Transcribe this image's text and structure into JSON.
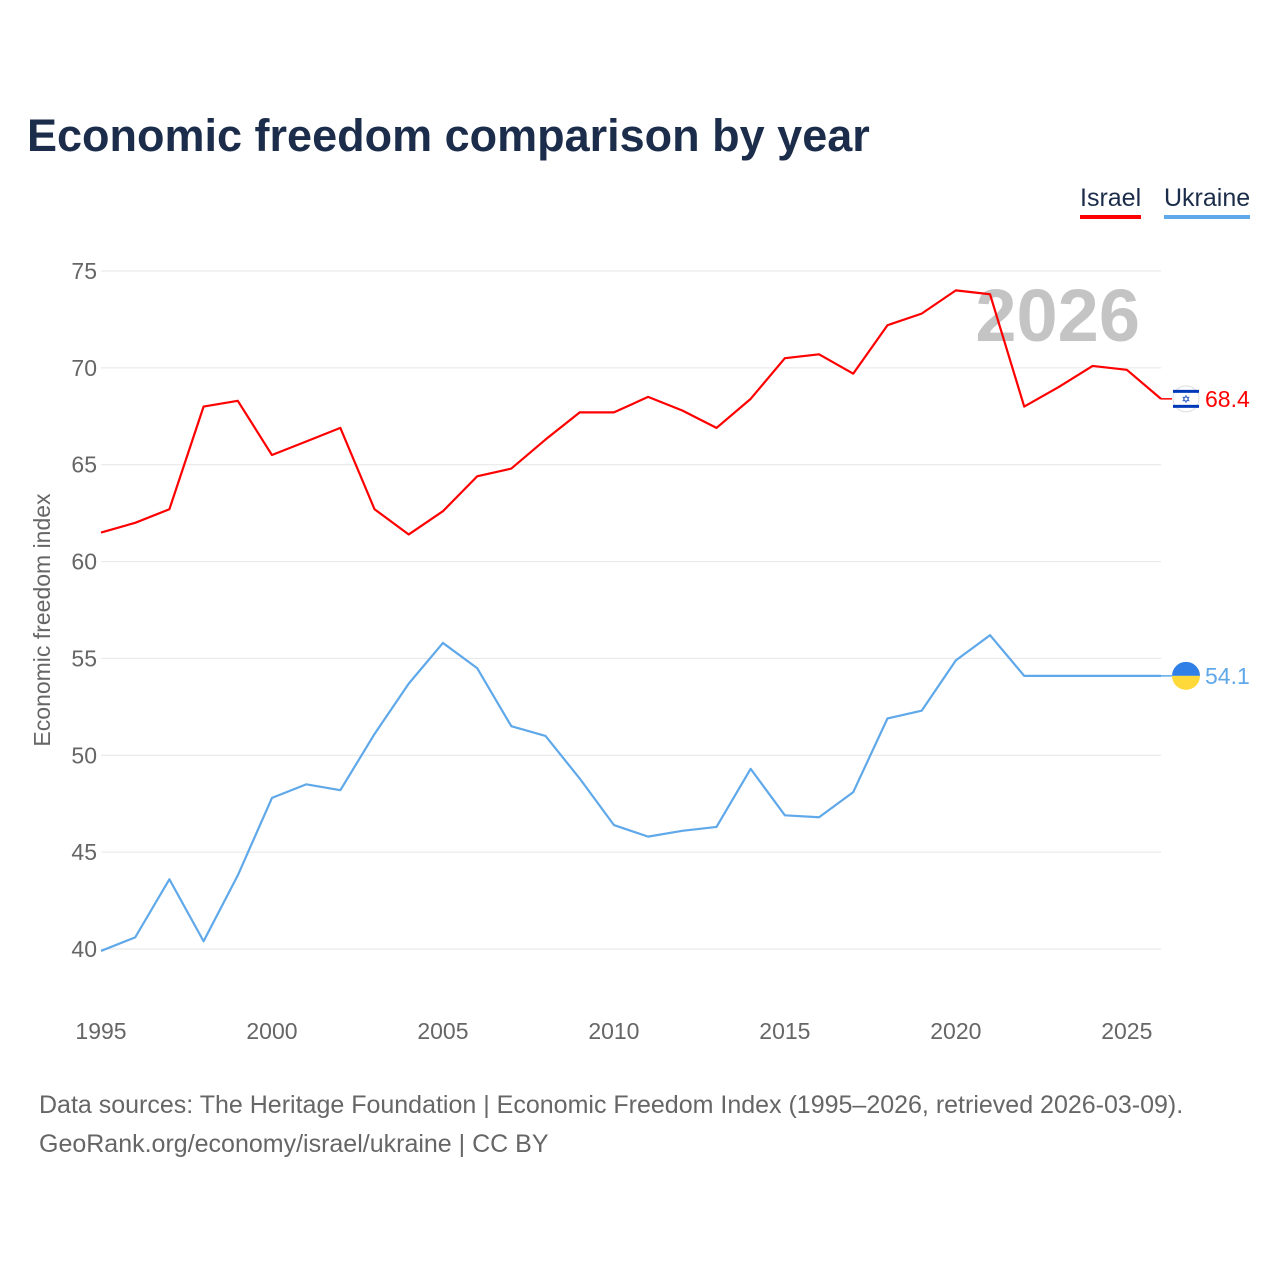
{
  "title": "Economic freedom comparison by year",
  "source_line1": "Data sources: The Heritage Foundation | Economic Freedom Index (1995–2026, retrieved 2026-03-09).",
  "source_line2": "GeoRank.org/economy/israel/ukraine | CC BY",
  "chart_data": {
    "type": "line",
    "title": "Economic freedom comparison by year",
    "xlabel": "",
    "ylabel": "Economic freedom index",
    "xlim": [
      1995,
      2026
    ],
    "ylim": [
      40,
      75
    ],
    "xticks": [
      1995,
      2000,
      2005,
      2010,
      2015,
      2020,
      2025
    ],
    "yticks": [
      40,
      45,
      50,
      55,
      60,
      65,
      70,
      75
    ],
    "grid": true,
    "legend": "top-right",
    "watermark_year": "2026",
    "x": [
      1995,
      1996,
      1997,
      1998,
      1999,
      2000,
      2001,
      2002,
      2003,
      2004,
      2005,
      2006,
      2007,
      2008,
      2009,
      2010,
      2011,
      2012,
      2013,
      2014,
      2015,
      2016,
      2017,
      2018,
      2019,
      2020,
      2021,
      2022,
      2023,
      2024,
      2025,
      2026
    ],
    "series": [
      {
        "name": "Israel",
        "color": "#ff0000",
        "end_label": "68.4",
        "values": [
          61.5,
          62.0,
          62.7,
          68.0,
          68.3,
          65.5,
          66.2,
          66.9,
          62.7,
          61.4,
          62.6,
          64.4,
          64.8,
          66.3,
          67.7,
          67.7,
          68.5,
          67.8,
          66.9,
          68.4,
          70.5,
          70.7,
          69.7,
          72.2,
          72.8,
          74.0,
          73.8,
          68.0,
          69.0,
          70.1,
          69.9,
          68.4
        ]
      },
      {
        "name": "Ukraine",
        "color": "#5fa8e9",
        "end_label": "54.1",
        "values": [
          39.9,
          40.6,
          43.6,
          40.4,
          43.8,
          47.8,
          48.5,
          48.2,
          51.1,
          53.7,
          55.8,
          54.5,
          51.5,
          51.0,
          48.8,
          46.4,
          45.8,
          46.1,
          46.3,
          49.3,
          46.9,
          46.8,
          48.1,
          51.9,
          52.3,
          54.9,
          56.2,
          54.1,
          54.1,
          54.1,
          54.1,
          54.1
        ]
      }
    ]
  }
}
